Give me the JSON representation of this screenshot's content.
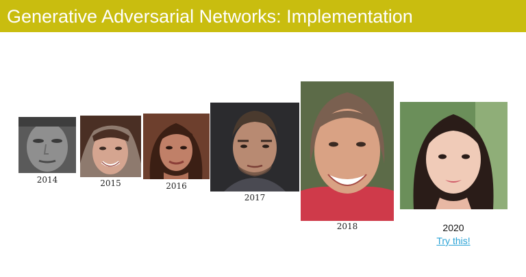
{
  "slide": {
    "title": "Generative Adversarial Networks: Implementation"
  },
  "faces": [
    {
      "year": "2014",
      "style": "grayscale",
      "color": "#8a8a8a"
    },
    {
      "year": "2015",
      "style": "color",
      "color": "#c99a86"
    },
    {
      "year": "2016",
      "style": "color",
      "color": "#b5735c"
    },
    {
      "year": "2017",
      "style": "color",
      "color": "#b58670"
    },
    {
      "year": "2018",
      "style": "color",
      "color": "#d9a284"
    },
    {
      "year": "2020",
      "style": "color",
      "color": "#f0cbb8"
    }
  ],
  "link": {
    "label": "Try this!"
  },
  "colors": {
    "title_bar": "#c9bd0f",
    "title_text": "#ffffff",
    "link": "#2aa3d6"
  }
}
